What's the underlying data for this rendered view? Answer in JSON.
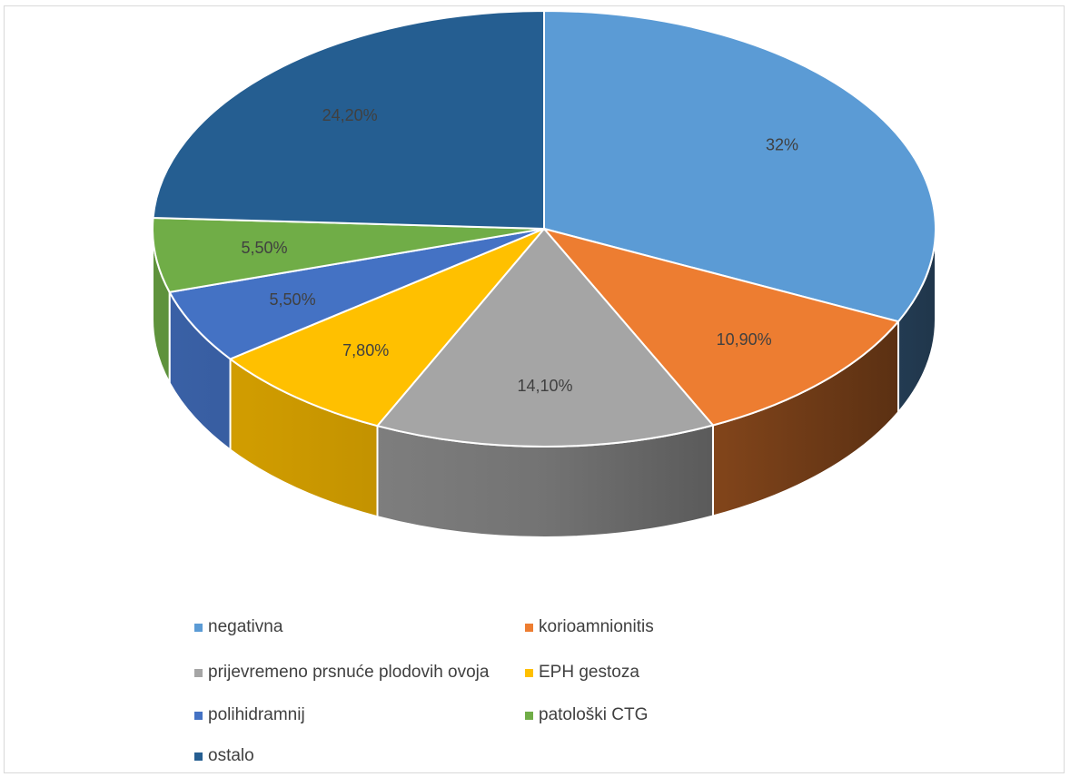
{
  "chart_data": {
    "type": "pie",
    "title": "",
    "legend_position": "bottom",
    "categories": [
      "negativna",
      "korioamnionitis",
      "prijevremeno prsnuće plodovih ovoja",
      "EPH gestoza",
      "polihidramnij",
      "patološki CTG",
      "ostalo"
    ],
    "values": [
      32,
      10.9,
      14.1,
      7.8,
      5.5,
      5.5,
      24.2
    ],
    "labels": [
      "32%",
      "10,90%",
      "14,10%",
      "7,80%",
      "5,50%",
      "5,50%",
      "24,20%"
    ],
    "colors": [
      "#5b9bd5",
      "#ed7d31",
      "#a5a5a5",
      "#ffc000",
      "#4472c4",
      "#70ad47",
      "#255e91"
    ]
  }
}
